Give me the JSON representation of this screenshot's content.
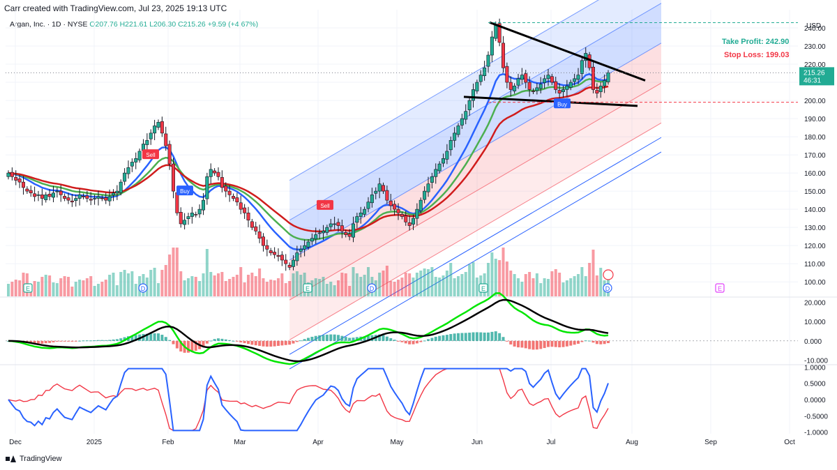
{
  "header": {
    "title": "Carr created with TradingView.com, Jul 23, 2025 19:13 UTC"
  },
  "legend": {
    "symbol": "Argan, Inc. · 1D · NYSE",
    "ohlc": "O207.76  H221.61  L206.30  C215.26  +9.59 (+4.67%)"
  },
  "price_tag": {
    "value": "215.26",
    "countdown": "46:31",
    "color": "#22ab94"
  },
  "annotations": {
    "take_profit": "Take Profit: 242.90",
    "stop_loss": "Stop Loss: 199.03",
    "take_profit_color": "#22ab94",
    "stop_loss_color": "#f23645"
  },
  "signals": [
    {
      "label": "Sell",
      "date": "2025-01-24"
    },
    {
      "label": "Buy",
      "date": "2025-02-04"
    },
    {
      "label": "Sell",
      "date": "2025-04-03"
    },
    {
      "label": "Buy",
      "date": "2025-07-14"
    }
  ],
  "footer": {
    "brand": "TradingView"
  },
  "chart_data": [
    {
      "type": "candlestick",
      "panel": "price",
      "currency": "USD",
      "ylim": [
        92,
        250
      ],
      "yticks": [
        100,
        110,
        120,
        130,
        140,
        150,
        160,
        170,
        180,
        190,
        200,
        210,
        220,
        230,
        240
      ],
      "xticks": [
        "Dec",
        "2025",
        "Feb",
        "Mar",
        "Apr",
        "May",
        "Jun",
        "Jul",
        "Aug",
        "Sep",
        "Oct"
      ],
      "close_series": [
        160,
        158,
        156,
        155,
        152,
        150,
        149,
        147,
        148,
        146,
        148,
        147,
        149,
        150,
        148,
        146,
        145,
        144,
        146,
        148,
        147,
        146,
        145,
        146,
        147,
        146,
        145,
        147,
        149,
        150,
        155,
        160,
        163,
        166,
        168,
        172,
        176,
        178,
        182,
        186,
        188,
        182,
        175,
        165,
        150,
        138,
        132,
        134,
        136,
        138,
        137,
        140,
        145,
        158,
        162,
        160,
        158,
        152,
        150,
        148,
        146,
        144,
        140,
        138,
        134,
        130,
        128,
        124,
        120,
        118,
        116,
        115,
        114,
        112,
        110,
        108,
        112,
        116,
        118,
        120,
        122,
        124,
        126,
        127,
        128,
        130,
        132,
        132,
        131,
        128,
        126,
        125,
        132,
        136,
        138,
        140,
        144,
        148,
        150,
        154,
        150,
        145,
        142,
        140,
        138,
        136,
        133,
        131,
        135,
        140,
        145,
        150,
        154,
        158,
        162,
        165,
        168,
        172,
        178,
        182,
        186,
        190,
        194,
        200,
        206,
        210,
        214,
        218,
        225,
        235,
        242,
        232,
        218,
        210,
        206,
        208,
        212,
        214,
        210,
        206,
        205,
        207,
        209,
        212,
        214,
        210,
        206,
        204,
        206,
        208,
        210,
        212,
        214,
        222,
        226,
        218,
        206,
        204,
        208,
        211,
        215.26
      ],
      "ema_blue": "EMA (fast)",
      "ema_green": "EMA (mid)",
      "ema_red": "EMA (slow)",
      "take_profit": 242.9,
      "stop_loss": 199.03,
      "last": 215.26
    },
    {
      "type": "macd",
      "panel": "macd",
      "ylim": [
        -12,
        22
      ],
      "yticks": [
        "20.000",
        "10.000",
        "0.000",
        "-10.000"
      ]
    },
    {
      "type": "line",
      "panel": "oscillator",
      "ylim": [
        -1.05,
        1.05
      ],
      "yticks": [
        "1.0000",
        "0.5000",
        "0.0000",
        "-0.5000",
        "-1.0000"
      ],
      "series": [
        {
          "color": "#2962ff"
        },
        {
          "color": "#f23645"
        }
      ]
    }
  ]
}
